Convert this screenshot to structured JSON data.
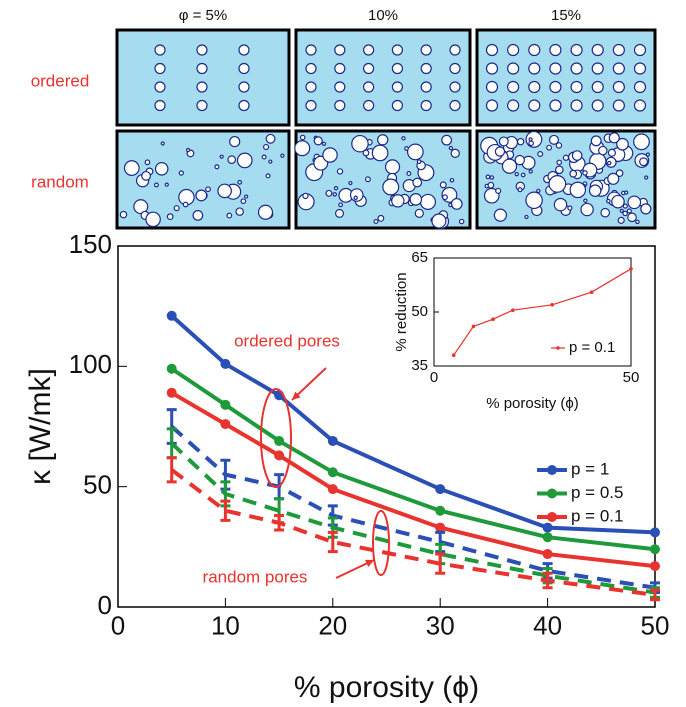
{
  "image_panels": {
    "column_labels": [
      "φ = 5%",
      "10%",
      "15%"
    ],
    "row_labels": [
      "ordered",
      "random"
    ]
  },
  "chart_data": [
    {
      "type": "line",
      "xlabel": "% porosity (ϕ)",
      "ylabel": "κ [W/mk]",
      "x": [
        5,
        10,
        15,
        20,
        30,
        40,
        50
      ],
      "xlim": [
        0,
        50
      ],
      "xticks": [
        0,
        10,
        20,
        30,
        40,
        50
      ],
      "ylim": [
        0,
        150
      ],
      "yticks": [
        0,
        50,
        100,
        150
      ],
      "legend": "right",
      "series": [
        {
          "name": "p = 1",
          "color": "#2a4fb5",
          "values": [
            121,
            101,
            88,
            69,
            49,
            33,
            31
          ]
        },
        {
          "name": "p = 0.5",
          "color": "#1f9a3a",
          "values": [
            99,
            84,
            69,
            56,
            40,
            29,
            24
          ]
        },
        {
          "name": "p = 0.1",
          "color": "#e8332e",
          "values": [
            89,
            76,
            63,
            49,
            33,
            22,
            17
          ]
        },
        {
          "color": "#2a4fb5",
          "linestyle": "dashed",
          "values": [
            75,
            55,
            50,
            38,
            27,
            15,
            8
          ],
          "errors": [
            7,
            6,
            5,
            4,
            4,
            3,
            2
          ]
        },
        {
          "color": "#1f9a3a",
          "linestyle": "dashed",
          "values": [
            68,
            47,
            40,
            33,
            22,
            13,
            6
          ],
          "errors": [
            6,
            5,
            5,
            4,
            4,
            3,
            2
          ]
        },
        {
          "color": "#e8332e",
          "linestyle": "dashed",
          "values": [
            57,
            40,
            35,
            27,
            18,
            11,
            5
          ],
          "errors": [
            5,
            4,
            3,
            4,
            4,
            3,
            2
          ]
        }
      ],
      "annotations": [
        "ordered pores",
        "random pores"
      ]
    },
    {
      "type": "line",
      "xlabel": "% porosity (ϕ)",
      "ylabel": "% reduction",
      "x": [
        5,
        10,
        15,
        20,
        30,
        40,
        50
      ],
      "xlim": [
        0,
        50
      ],
      "xticks": [
        0,
        50
      ],
      "ylim": [
        35,
        65
      ],
      "yticks": [
        35,
        50,
        65
      ],
      "legend": "lower right",
      "series": [
        {
          "name": "p = 0.1",
          "color": "#e8332e",
          "values": [
            38,
            46,
            48,
            50.5,
            52,
            55.5,
            62
          ]
        }
      ]
    }
  ]
}
